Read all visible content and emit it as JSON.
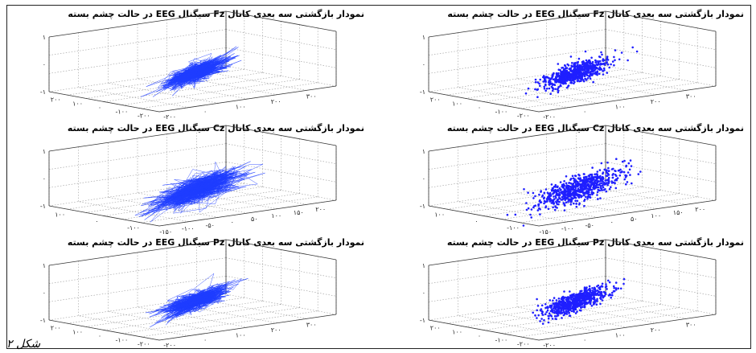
{
  "chart_data": [
    {
      "type": "scatter",
      "style": "line",
      "title": "نمودار بازگشتی سه بعدی کانال Fz سیگنال EEG در حالت چشم بسته",
      "ztick_labels": [
        "۱",
        "۰",
        "-۱"
      ],
      "left_tick_labels": [
        "۲۰۰",
        "۱۰۰",
        "۰",
        "-۱۰۰",
        "-۲۰۰"
      ],
      "right_tick_labels": [
        "-۲۰۰",
        "۰",
        "۱۰۰",
        "۲۰۰",
        "۳۰۰"
      ],
      "cluster": {
        "center_x": 0,
        "center_y": 0,
        "spread": 40
      },
      "color": "#1f3dff"
    },
    {
      "type": "scatter",
      "style": "points",
      "title": "نمودار بازگشتی سه بعدی کانال Fz سیگنال EEG در حالت چشم بسته",
      "ztick_labels": [
        "۱",
        "۰",
        "-۱"
      ],
      "left_tick_labels": [
        "۲۰۰",
        "۱۰۰",
        "۰",
        "-۱۰۰",
        "-۲۰۰"
      ],
      "right_tick_labels": [
        "-۲۰۰",
        "۰",
        "۱۰۰",
        "۲۰۰",
        "۳۰۰"
      ],
      "cluster": {
        "center_x": 0,
        "center_y": 0,
        "spread": 40
      },
      "color": "#1f1fff"
    },
    {
      "type": "scatter",
      "style": "line",
      "title": "نمودار بازگشتی سه بعدی کانال Cz سیگنال EEG در حالت چشم بسته",
      "ztick_labels": [
        "۱",
        "۰",
        "-۱"
      ],
      "left_tick_labels": [
        "۱۰۰",
        "۰",
        "-۱۰۰"
      ],
      "right_tick_labels": [
        "-۱۵۰",
        "-۱۰۰",
        "-۵۰",
        "۰",
        "۵۰",
        "۱۰۰",
        "۱۵۰",
        "۲۰۰"
      ],
      "cluster": {
        "center_x": 20,
        "center_y": 10,
        "spread": 55
      },
      "color": "#1f3dff"
    },
    {
      "type": "scatter",
      "style": "points",
      "title": "نمودار بازگشتی سه بعدی کانال Cz سیگنال EEG در حالت چشم بسته",
      "ztick_labels": [
        "۱",
        "۰",
        "-۱"
      ],
      "left_tick_labels": [
        "۱۰۰",
        "۰",
        "-۱۰۰"
      ],
      "right_tick_labels": [
        "-۱۵۰",
        "-۱۰۰",
        "-۵۰",
        "۰",
        "۵۰",
        "۱۰۰",
        "۱۵۰",
        "۲۰۰"
      ],
      "cluster": {
        "center_x": 20,
        "center_y": 10,
        "spread": 55
      },
      "color": "#1f1fff"
    },
    {
      "type": "scatter",
      "style": "line",
      "title": "نمودار بازگشتی سه بعدی کانال Pz سیگنال EEG در حالت چشم بسته",
      "ztick_labels": [
        "۱",
        "۰",
        "-۱"
      ],
      "left_tick_labels": [
        "۲۰۰",
        "۱۰۰",
        "۰",
        "-۱۰۰",
        "-۲۰۰"
      ],
      "right_tick_labels": [
        "-۲۰۰",
        "۰",
        "۱۰۰",
        "۲۰۰",
        "۳۰۰"
      ],
      "cluster": {
        "center_x": 0,
        "center_y": 0,
        "spread": 40
      },
      "color": "#1f3dff"
    },
    {
      "type": "scatter",
      "style": "points",
      "title": "نمودار بازگشتی سه بعدی کانال Pz سیگنال EEG در حالت چشم بسته",
      "ztick_labels": [
        "۱",
        "۰",
        "-۱"
      ],
      "left_tick_labels": [
        "۲۰۰",
        "۱۰۰",
        "۰",
        "-۱۰۰",
        "-۲۰۰"
      ],
      "right_tick_labels": [
        "-۲۰۰",
        "۰",
        "۱۰۰",
        "۲۰۰",
        "۳۰۰"
      ],
      "cluster": {
        "center_x": 0,
        "center_y": 0,
        "spread": 40
      },
      "color": "#1f1fff"
    }
  ],
  "caption": "شکل ۲"
}
